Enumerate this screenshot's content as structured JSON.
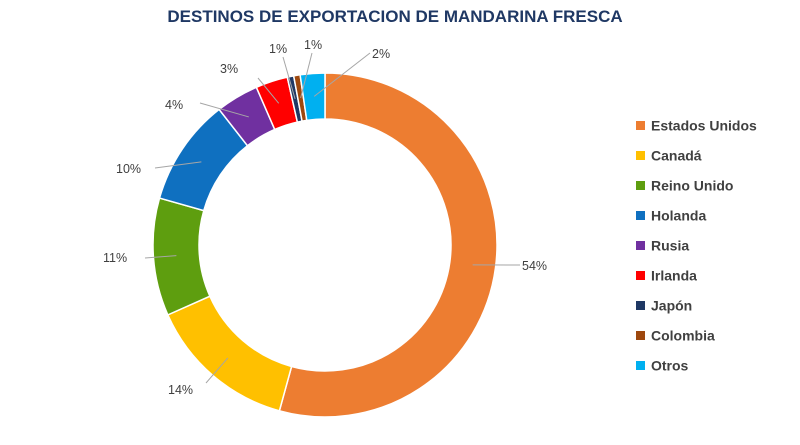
{
  "chart_data": {
    "type": "pie",
    "variant": "doughnut",
    "title": "DESTINOS DE EXPORTACION DE MANDARINA FRESCA",
    "legend_position": "right",
    "slices": [
      {
        "name": "Estados Unidos",
        "value": 54,
        "label": "54%",
        "color": "#ed7d31"
      },
      {
        "name": "Canadá",
        "value": 14,
        "label": "14%",
        "color": "#ffc000"
      },
      {
        "name": "Reino Unido",
        "value": 11,
        "label": "11%",
        "color": "#5e9e0f"
      },
      {
        "name": "Holanda",
        "value": 10,
        "label": "10%",
        "color": "#0f70c0"
      },
      {
        "name": "Rusia",
        "value": 4,
        "label": "4%",
        "color": "#7030a0"
      },
      {
        "name": "Irlanda",
        "value": 3,
        "label": "3%",
        "color": "#ff0000"
      },
      {
        "name": "Japón",
        "value": 0.6,
        "label": "1%",
        "color": "#1f3864"
      },
      {
        "name": "Colombia",
        "value": 0.6,
        "label": "1%",
        "color": "#9e480e"
      },
      {
        "name": "Otros",
        "value": 2.3,
        "label": "2%",
        "color": "#00b0f0"
      }
    ]
  }
}
